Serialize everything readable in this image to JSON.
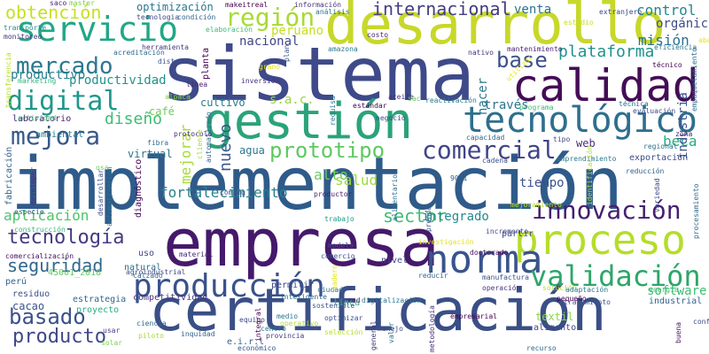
{
  "word_cloud": {
    "words": [
      {
        "text": "implementación",
        "color": "#2f5b8a"
      },
      {
        "text": "certificación",
        "color": "#3a4f86"
      },
      {
        "text": "sistema",
        "color": "#3e4a89"
      },
      {
        "text": "empresa",
        "color": "#45196b"
      },
      {
        "text": "desarrollo",
        "color": "#c7d82a"
      },
      {
        "text": "gestión",
        "color": "#2aa37a"
      },
      {
        "text": "calidad",
        "color": "#440d55"
      },
      {
        "text": "proceso",
        "color": "#b5dd2b"
      },
      {
        "text": "norma",
        "color": "#3a548c"
      },
      {
        "text": "tecnológico",
        "color": "#2e6f8e"
      },
      {
        "text": "servicio",
        "color": "#22a785"
      },
      {
        "text": "producción",
        "color": "#3a528b"
      },
      {
        "text": "innovación",
        "color": "#46206e"
      },
      {
        "text": "validación",
        "color": "#2ea669"
      },
      {
        "text": "región",
        "color": "#a8db34"
      },
      {
        "text": "obtención",
        "color": "#c8e020"
      },
      {
        "text": "internacional",
        "color": "#433d84"
      },
      {
        "text": "mercado",
        "color": "#2b798e"
      },
      {
        "text": "digital",
        "color": "#1f978b"
      },
      {
        "text": "mejora",
        "color": "#38588c"
      },
      {
        "text": "comercial",
        "color": "#414487"
      },
      {
        "text": "prototipo",
        "color": "#5ec962"
      },
      {
        "text": "tecnología",
        "color": "#443a83"
      },
      {
        "text": "plataforma",
        "color": "#21918c"
      },
      {
        "text": "base",
        "color": "#3b518b"
      },
      {
        "text": "basado",
        "color": "#3b518b"
      },
      {
        "text": "producto",
        "color": "#3f4889"
      },
      {
        "text": "seguridad",
        "color": "#31688e"
      },
      {
        "text": "aplicación",
        "color": "#4ec36b"
      },
      {
        "text": "fortalecimiento",
        "color": "#27808e"
      },
      {
        "text": "sector",
        "color": "#3fbc73"
      },
      {
        "text": "integrado",
        "color": "#238a8d"
      },
      {
        "text": "productividad",
        "color": "#20928c"
      },
      {
        "text": "productivo",
        "color": "#277f8e"
      },
      {
        "text": "diseño",
        "color": "#3fbc73"
      },
      {
        "text": "mejorar",
        "color": "#a5db36"
      },
      {
        "text": "control",
        "color": "#24868e"
      },
      {
        "text": "misión",
        "color": "#2c728e"
      },
      {
        "text": "beca",
        "color": "#25ac82"
      },
      {
        "text": "venta",
        "color": "#2c738e"
      },
      {
        "text": "orgánico",
        "color": "#3e4c8a"
      },
      {
        "text": "nacional",
        "color": "#3f4788"
      },
      {
        "text": "peruano",
        "color": "#c5e021"
      },
      {
        "text": "web",
        "color": "#472d7b"
      },
      {
        "text": "industria",
        "color": "#3b528b"
      },
      {
        "text": "nuevo",
        "color": "#39568c"
      },
      {
        "text": "alto",
        "color": "#6ccd5a"
      },
      {
        "text": "salud",
        "color": "#a0da39"
      },
      {
        "text": "hacer",
        "color": "#2a778e"
      },
      {
        "text": "través",
        "color": "#2b758e"
      },
      {
        "text": "tiempo",
        "color": "#3b528b"
      },
      {
        "text": "exportación",
        "color": "#3e4c8a"
      },
      {
        "text": "agua",
        "color": "#2a788e"
      },
      {
        "text": "virtual",
        "color": "#2c718e"
      },
      {
        "text": "cultivo",
        "color": "#29798e"
      },
      {
        "text": "café",
        "color": "#6ccd5a"
      },
      {
        "text": "laboratorio",
        "color": "#482475"
      },
      {
        "text": "software",
        "color": "#3fbc73"
      },
      {
        "text": "partir",
        "color": "#3e4989"
      },
      {
        "text": "cacao",
        "color": "#3b528b"
      },
      {
        "text": "costo",
        "color": "#482576"
      },
      {
        "text": "master",
        "color": "#7ad151"
      },
      {
        "text": "optimización",
        "color": "#2a778e"
      },
      {
        "text": "información",
        "color": "#46337e"
      },
      {
        "text": "extranjero",
        "color": "#3f4788"
      },
      {
        "text": "estudio",
        "color": "#cae11f"
      },
      {
        "text": "monitoreo",
        "color": "#46307e"
      },
      {
        "text": "transporte",
        "color": "#228c8d"
      },
      {
        "text": "saco",
        "color": "#482677"
      },
      {
        "text": "herramienta",
        "color": "#453781"
      },
      {
        "text": "marketing",
        "color": "#35b779"
      },
      {
        "text": "alpaca",
        "color": "#86d549"
      },
      {
        "text": "ambiental",
        "color": "#2a788e"
      },
      {
        "text": "capacidad",
        "color": "#33638d"
      },
      {
        "text": "técnico",
        "color": "#440154"
      },
      {
        "text": "fibra",
        "color": "#2d708e"
      },
      {
        "text": "zona",
        "color": "#482173"
      },
      {
        "text": "regional",
        "color": "#2e6e8e"
      },
      {
        "text": "construcción",
        "color": "#35b779"
      },
      {
        "text": "comercialización",
        "color": "#470d60"
      },
      {
        "text": "perú",
        "color": "#33638d"
      },
      {
        "text": "residuo",
        "color": "#3b528b"
      },
      {
        "text": "estrategia",
        "color": "#32658e"
      },
      {
        "text": "proyecto",
        "color": "#26ad81"
      },
      {
        "text": "competitividad",
        "color": "#46327e"
      },
      {
        "text": "natural",
        "color": "#2c728e"
      },
      {
        "text": "agroindustrial",
        "color": "#3e4a89"
      },
      {
        "text": "material",
        "color": "#482878"
      },
      {
        "text": "uso",
        "color": "#3f4788"
      },
      {
        "text": "trabajo",
        "color": "#1e9c89"
      },
      {
        "text": "nivel",
        "color": "#3f4889"
      },
      {
        "text": "permitir",
        "color": "#414487"
      },
      {
        "text": "línea",
        "color": "#2fb47c"
      },
      {
        "text": "textil",
        "color": "#8bd646"
      },
      {
        "text": "alimento",
        "color": "#3f4788"
      },
      {
        "text": "empresarial",
        "color": "#440154"
      },
      {
        "text": "tratamiento",
        "color": "#3a548c"
      },
      {
        "text": "solución",
        "color": "#b8de29"
      },
      {
        "text": "industrial",
        "color": "#33638d"
      },
      {
        "text": "centro",
        "color": "#2a768e"
      },
      {
        "text": "provincia",
        "color": "#433e85"
      },
      {
        "text": "piloto",
        "color": "#a2da37"
      },
      {
        "text": "usar",
        "color": "#443983"
      },
      {
        "text": "solar",
        "color": "#7ad151"
      },
      {
        "text": "medio",
        "color": "#2c738e"
      },
      {
        "text": "operativo",
        "color": "#b2dd2d"
      },
      {
        "text": "manejo",
        "color": "#3e4c8a"
      },
      {
        "text": "recurso",
        "color": "#2f6b8e"
      },
      {
        "text": "buena",
        "color": "#471063"
      },
      {
        "text": "e.i.r.l",
        "color": "#33638d"
      },
      {
        "text": "s.a.c.",
        "color": "#95d840"
      },
      {
        "text": "económico",
        "color": "#39558c"
      },
      {
        "text": "tipo",
        "color": "#3f4788"
      },
      {
        "text": "cadena",
        "color": "#3b528b"
      },
      {
        "text": "9001",
        "color": "#34618d"
      },
      {
        "text": "45001_2018",
        "color": "#5ec962"
      },
      {
        "text": "calzado",
        "color": "#31688e"
      },
      {
        "text": "doctorado",
        "color": "#46075a"
      },
      {
        "text": "investigación",
        "color": "#e5e419"
      },
      {
        "text": "modelo",
        "color": "#3b528b"
      },
      {
        "text": "comercio",
        "color": "#39568c"
      },
      {
        "text": "incremento",
        "color": "#3e4a89"
      },
      {
        "text": "digitalización",
        "color": "#2b758e"
      },
      {
        "text": "reducir",
        "color": "#31688e"
      },
      {
        "text": "manufactura",
        "color": "#3b528b"
      },
      {
        "text": "operación",
        "color": "#46337e"
      },
      {
        "text": "adaptación",
        "color": "#29798e"
      },
      {
        "text": "pequeño",
        "color": "#440154"
      },
      {
        "text": "energía",
        "color": "#3fbc73"
      },
      {
        "text": "optimizar",
        "color": "#3e4c8a"
      },
      {
        "text": "ciudad",
        "color": "#2d708e"
      },
      {
        "text": "sostenible",
        "color": "#3b518b"
      },
      {
        "text": "inteligente",
        "color": "#31688e"
      },
      {
        "text": "ciencia",
        "color": "#2e6d8e"
      },
      {
        "text": "inquidad",
        "color": "#33638d"
      },
      {
        "text": "equipo",
        "color": "#3e4a89"
      },
      {
        "text": "selección",
        "color": "#b8de29"
      },
      {
        "text": "general",
        "color": "#46337e"
      },
      {
        "text": "valor",
        "color": "#2c728e"
      },
      {
        "text": "metodología",
        "color": "#472d7b"
      },
      {
        "text": "integral",
        "color": "#440154"
      },
      {
        "text": "nadero",
        "color": "#e5e419"
      },
      {
        "text": "red",
        "color": "#482475"
      },
      {
        "text": "conf",
        "color": "#3e4989"
      },
      {
        "text": "emprendimiento",
        "color": "#2a788e"
      },
      {
        "text": "reducción",
        "color": "#33638d"
      },
      {
        "text": "identificación",
        "color": "#a8db34"
      },
      {
        "text": "variedad",
        "color": "#3e4c8a"
      },
      {
        "text": "procesamiento",
        "color": "#2f6c8e"
      },
      {
        "text": "mejoramiento",
        "color": "#b5de2b"
      },
      {
        "text": "alimentario",
        "color": "#2d708e"
      },
      {
        "text": "prenda",
        "color": "#3b528b"
      },
      {
        "text": "productor",
        "color": "#482173"
      },
      {
        "text": "coming",
        "color": "#3b528b"
      },
      {
        "text": "developer",
        "color": "#46337e"
      },
      {
        "text": "desarrollar",
        "color": "#3e4a89"
      },
      {
        "text": "automatizado",
        "color": "#31688e"
      },
      {
        "text": "automatización",
        "color": "#2c728e"
      },
      {
        "text": "diagnóstico",
        "color": "#440154"
      },
      {
        "text": "protocolo",
        "color": "#482878"
      },
      {
        "text": "cliente",
        "color": "#9bd93c"
      },
      {
        "text": "especie",
        "color": "#3b528b"
      },
      {
        "text": "osa",
        "color": "#6ccd5a"
      },
      {
        "text": "fabricación",
        "color": "#33638d"
      },
      {
        "text": "actividad",
        "color": "#3fbc73"
      },
      {
        "text": "transferencia",
        "color": "#b8de29"
      },
      {
        "text": "requisa",
        "color": "#2a788e"
      },
      {
        "text": "reactivación",
        "color": "#2a788e"
      },
      {
        "text": "estándar",
        "color": "#440154"
      },
      {
        "text": "aceite",
        "color": "#46337e"
      },
      {
        "text": "negocio",
        "color": "#3e4a89"
      },
      {
        "text": "utilizar",
        "color": "#e5e419"
      },
      {
        "text": "programa",
        "color": "#3fbc73"
      },
      {
        "text": "técnica",
        "color": "#2c728e"
      },
      {
        "text": "evaluación",
        "color": "#3e4c8a"
      },
      {
        "text": "eficiencia",
        "color": "#2a788e"
      },
      {
        "text": "empaquetamiento",
        "color": "#2e6e8e"
      },
      {
        "text": "inversión",
        "color": "#46337e"
      },
      {
        "text": "sac",
        "color": "#6ccd5a"
      },
      {
        "text": "grano",
        "color": "#e5e419"
      },
      {
        "text": "planta",
        "color": "#440154"
      },
      {
        "text": "línea",
        "color": "#482475"
      },
      {
        "text": "distrito",
        "color": "#3b528b"
      },
      {
        "text": "acreditación",
        "color": "#2f6b8e"
      },
      {
        "text": "elaboración",
        "color": "#3fbc73"
      },
      {
        "text": "tecnologia",
        "color": "#3e4a89"
      },
      {
        "text": "condición",
        "color": "#33638d"
      },
      {
        "text": "makeitreal",
        "color": "#440154"
      },
      {
        "text": "análisis",
        "color": "#2c728e"
      },
      {
        "text": "amazona",
        "color": "#2a788e"
      },
      {
        "text": "plan",
        "color": "#3b528b"
      },
      {
        "text": "mantenimiento",
        "color": "#482475"
      },
      {
        "text": "nativo",
        "color": "#46337e"
      },
      {
        "text": "abad",
        "color": "#e5e419"
      }
    ]
  }
}
